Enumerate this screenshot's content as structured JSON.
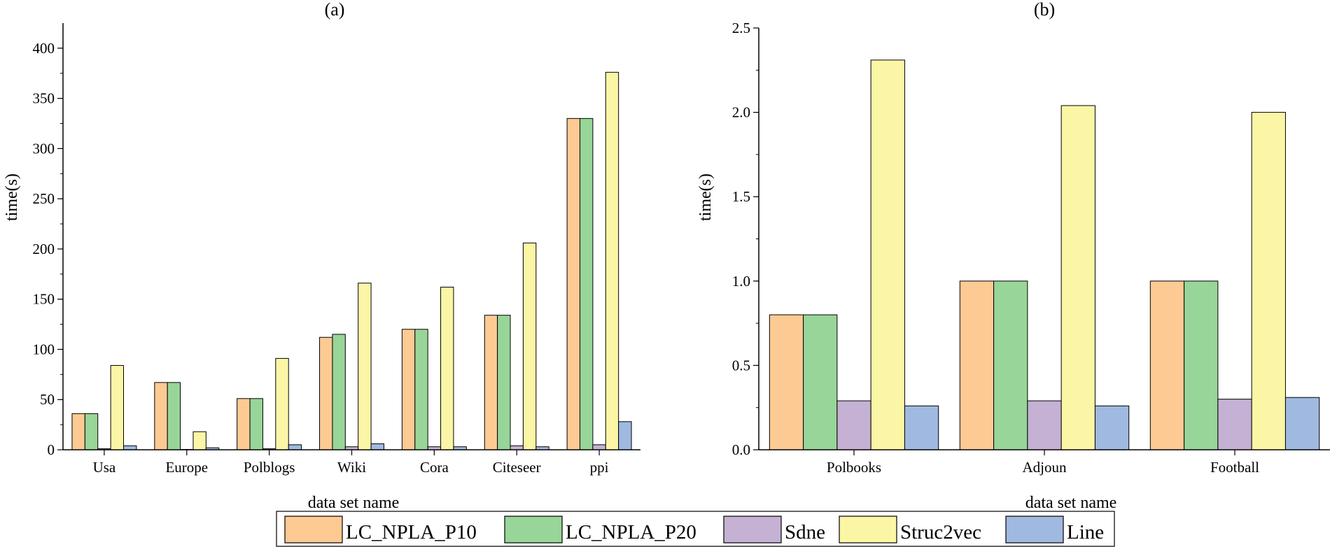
{
  "colors": {
    "LC_NPLA_P10": "#FDCA93",
    "LC_NPLA_P20": "#98D598",
    "Sdne": "#C5B1D4",
    "Struc2vec": "#FBF6A6",
    "Line": "#A0B9E1",
    "stroke": "#000000"
  },
  "chart_data": [
    {
      "type": "bar",
      "title": "(a)",
      "xlabel": "data set name",
      "ylabel": "time(s)",
      "ylim": [
        0,
        425
      ],
      "yticks": [
        0,
        50,
        100,
        150,
        200,
        250,
        300,
        350,
        400
      ],
      "ytick_labels": [
        "0",
        "50",
        "100",
        "150",
        "200",
        "250",
        "300",
        "350",
        "400"
      ],
      "categories": [
        "Usa",
        "Europe",
        "Polblogs",
        "Wiki",
        "Cora",
        "Citeseer",
        "ppi"
      ],
      "series": [
        {
          "name": "LC_NPLA_P10",
          "values": [
            36,
            67,
            51,
            112,
            120,
            134,
            330
          ]
        },
        {
          "name": "LC_NPLA_P20",
          "values": [
            36,
            67,
            51,
            115,
            120,
            134,
            330
          ]
        },
        {
          "name": "Sdne",
          "values": [
            1,
            0,
            1,
            3,
            3,
            4,
            5
          ]
        },
        {
          "name": "Struc2vec",
          "values": [
            84,
            18,
            91,
            166,
            162,
            206,
            376
          ]
        },
        {
          "name": "Line",
          "values": [
            4,
            2,
            5,
            6,
            3,
            3,
            28
          ]
        }
      ]
    },
    {
      "type": "bar",
      "title": "(b)",
      "xlabel": "data set name",
      "ylabel": "time(s)",
      "ylim": [
        0,
        2.5
      ],
      "yticks": [
        0,
        0.5,
        1.0,
        1.5,
        2.0,
        2.5
      ],
      "ytick_labels": [
        "0.0",
        "0.5",
        "1.0",
        "1.5",
        "2.0",
        "2.5"
      ],
      "categories": [
        "Polbooks",
        "Adjoun",
        "Football"
      ],
      "series": [
        {
          "name": "LC_NPLA_P10",
          "values": [
            0.8,
            1.0,
            1.0
          ]
        },
        {
          "name": "LC_NPLA_P20",
          "values": [
            0.8,
            1.0,
            1.0
          ]
        },
        {
          "name": "Sdne",
          "values": [
            0.29,
            0.29,
            0.3
          ]
        },
        {
          "name": "Struc2vec",
          "values": [
            2.31,
            2.04,
            2.0
          ]
        },
        {
          "name": "Line",
          "values": [
            0.26,
            0.26,
            0.31
          ]
        }
      ]
    }
  ],
  "legend": {
    "placement": "bottom-center",
    "items": [
      "LC_NPLA_P10",
      "LC_NPLA_P20",
      "Sdne",
      "Struc2vec",
      "Line"
    ]
  }
}
